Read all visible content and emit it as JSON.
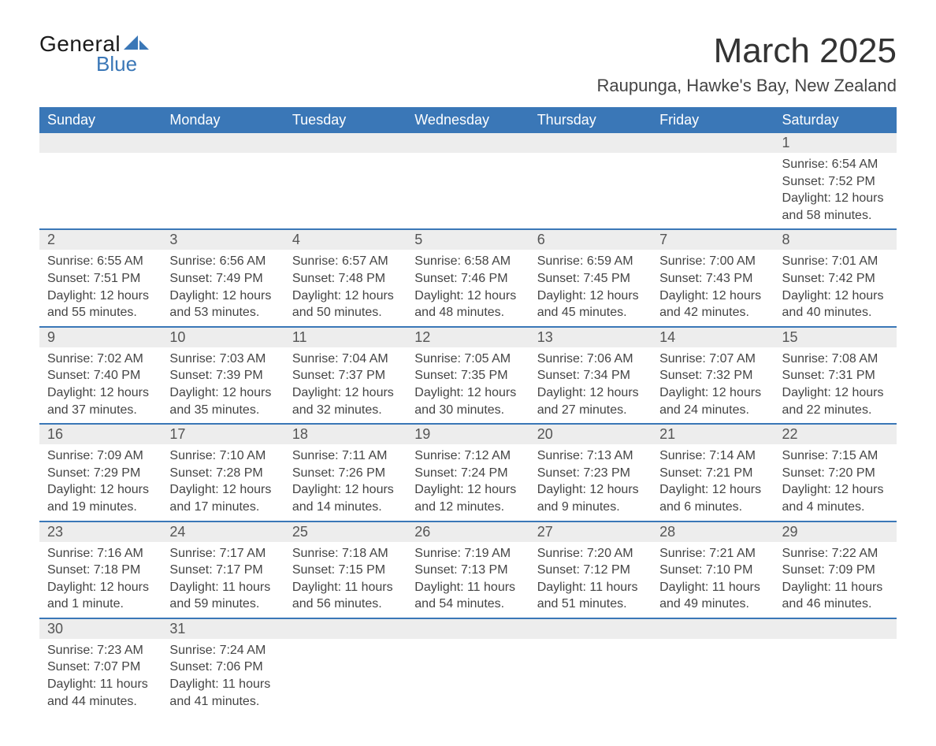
{
  "logo": {
    "word1": "General",
    "word2": "Blue"
  },
  "title": "March 2025",
  "location": "Raupunga, Hawke's Bay, New Zealand",
  "colors": {
    "header_bg": "#3a77b7",
    "header_fg": "#ffffff",
    "daynum_bg": "#ededed",
    "row_border": "#3a77b7",
    "text": "#444444",
    "logo_blue": "#3a77b7"
  },
  "weekdays": [
    "Sunday",
    "Monday",
    "Tuesday",
    "Wednesday",
    "Thursday",
    "Friday",
    "Saturday"
  ],
  "weeks": [
    [
      null,
      null,
      null,
      null,
      null,
      null,
      {
        "n": "1",
        "sr": "Sunrise: 6:54 AM",
        "ss": "Sunset: 7:52 PM",
        "d1": "Daylight: 12 hours",
        "d2": "and 58 minutes."
      }
    ],
    [
      {
        "n": "2",
        "sr": "Sunrise: 6:55 AM",
        "ss": "Sunset: 7:51 PM",
        "d1": "Daylight: 12 hours",
        "d2": "and 55 minutes."
      },
      {
        "n": "3",
        "sr": "Sunrise: 6:56 AM",
        "ss": "Sunset: 7:49 PM",
        "d1": "Daylight: 12 hours",
        "d2": "and 53 minutes."
      },
      {
        "n": "4",
        "sr": "Sunrise: 6:57 AM",
        "ss": "Sunset: 7:48 PM",
        "d1": "Daylight: 12 hours",
        "d2": "and 50 minutes."
      },
      {
        "n": "5",
        "sr": "Sunrise: 6:58 AM",
        "ss": "Sunset: 7:46 PM",
        "d1": "Daylight: 12 hours",
        "d2": "and 48 minutes."
      },
      {
        "n": "6",
        "sr": "Sunrise: 6:59 AM",
        "ss": "Sunset: 7:45 PM",
        "d1": "Daylight: 12 hours",
        "d2": "and 45 minutes."
      },
      {
        "n": "7",
        "sr": "Sunrise: 7:00 AM",
        "ss": "Sunset: 7:43 PM",
        "d1": "Daylight: 12 hours",
        "d2": "and 42 minutes."
      },
      {
        "n": "8",
        "sr": "Sunrise: 7:01 AM",
        "ss": "Sunset: 7:42 PM",
        "d1": "Daylight: 12 hours",
        "d2": "and 40 minutes."
      }
    ],
    [
      {
        "n": "9",
        "sr": "Sunrise: 7:02 AM",
        "ss": "Sunset: 7:40 PM",
        "d1": "Daylight: 12 hours",
        "d2": "and 37 minutes."
      },
      {
        "n": "10",
        "sr": "Sunrise: 7:03 AM",
        "ss": "Sunset: 7:39 PM",
        "d1": "Daylight: 12 hours",
        "d2": "and 35 minutes."
      },
      {
        "n": "11",
        "sr": "Sunrise: 7:04 AM",
        "ss": "Sunset: 7:37 PM",
        "d1": "Daylight: 12 hours",
        "d2": "and 32 minutes."
      },
      {
        "n": "12",
        "sr": "Sunrise: 7:05 AM",
        "ss": "Sunset: 7:35 PM",
        "d1": "Daylight: 12 hours",
        "d2": "and 30 minutes."
      },
      {
        "n": "13",
        "sr": "Sunrise: 7:06 AM",
        "ss": "Sunset: 7:34 PM",
        "d1": "Daylight: 12 hours",
        "d2": "and 27 minutes."
      },
      {
        "n": "14",
        "sr": "Sunrise: 7:07 AM",
        "ss": "Sunset: 7:32 PM",
        "d1": "Daylight: 12 hours",
        "d2": "and 24 minutes."
      },
      {
        "n": "15",
        "sr": "Sunrise: 7:08 AM",
        "ss": "Sunset: 7:31 PM",
        "d1": "Daylight: 12 hours",
        "d2": "and 22 minutes."
      }
    ],
    [
      {
        "n": "16",
        "sr": "Sunrise: 7:09 AM",
        "ss": "Sunset: 7:29 PM",
        "d1": "Daylight: 12 hours",
        "d2": "and 19 minutes."
      },
      {
        "n": "17",
        "sr": "Sunrise: 7:10 AM",
        "ss": "Sunset: 7:28 PM",
        "d1": "Daylight: 12 hours",
        "d2": "and 17 minutes."
      },
      {
        "n": "18",
        "sr": "Sunrise: 7:11 AM",
        "ss": "Sunset: 7:26 PM",
        "d1": "Daylight: 12 hours",
        "d2": "and 14 minutes."
      },
      {
        "n": "19",
        "sr": "Sunrise: 7:12 AM",
        "ss": "Sunset: 7:24 PM",
        "d1": "Daylight: 12 hours",
        "d2": "and 12 minutes."
      },
      {
        "n": "20",
        "sr": "Sunrise: 7:13 AM",
        "ss": "Sunset: 7:23 PM",
        "d1": "Daylight: 12 hours",
        "d2": "and 9 minutes."
      },
      {
        "n": "21",
        "sr": "Sunrise: 7:14 AM",
        "ss": "Sunset: 7:21 PM",
        "d1": "Daylight: 12 hours",
        "d2": "and 6 minutes."
      },
      {
        "n": "22",
        "sr": "Sunrise: 7:15 AM",
        "ss": "Sunset: 7:20 PM",
        "d1": "Daylight: 12 hours",
        "d2": "and 4 minutes."
      }
    ],
    [
      {
        "n": "23",
        "sr": "Sunrise: 7:16 AM",
        "ss": "Sunset: 7:18 PM",
        "d1": "Daylight: 12 hours",
        "d2": "and 1 minute."
      },
      {
        "n": "24",
        "sr": "Sunrise: 7:17 AM",
        "ss": "Sunset: 7:17 PM",
        "d1": "Daylight: 11 hours",
        "d2": "and 59 minutes."
      },
      {
        "n": "25",
        "sr": "Sunrise: 7:18 AM",
        "ss": "Sunset: 7:15 PM",
        "d1": "Daylight: 11 hours",
        "d2": "and 56 minutes."
      },
      {
        "n": "26",
        "sr": "Sunrise: 7:19 AM",
        "ss": "Sunset: 7:13 PM",
        "d1": "Daylight: 11 hours",
        "d2": "and 54 minutes."
      },
      {
        "n": "27",
        "sr": "Sunrise: 7:20 AM",
        "ss": "Sunset: 7:12 PM",
        "d1": "Daylight: 11 hours",
        "d2": "and 51 minutes."
      },
      {
        "n": "28",
        "sr": "Sunrise: 7:21 AM",
        "ss": "Sunset: 7:10 PM",
        "d1": "Daylight: 11 hours",
        "d2": "and 49 minutes."
      },
      {
        "n": "29",
        "sr": "Sunrise: 7:22 AM",
        "ss": "Sunset: 7:09 PM",
        "d1": "Daylight: 11 hours",
        "d2": "and 46 minutes."
      }
    ],
    [
      {
        "n": "30",
        "sr": "Sunrise: 7:23 AM",
        "ss": "Sunset: 7:07 PM",
        "d1": "Daylight: 11 hours",
        "d2": "and 44 minutes."
      },
      {
        "n": "31",
        "sr": "Sunrise: 7:24 AM",
        "ss": "Sunset: 7:06 PM",
        "d1": "Daylight: 11 hours",
        "d2": "and 41 minutes."
      },
      null,
      null,
      null,
      null,
      null
    ]
  ]
}
